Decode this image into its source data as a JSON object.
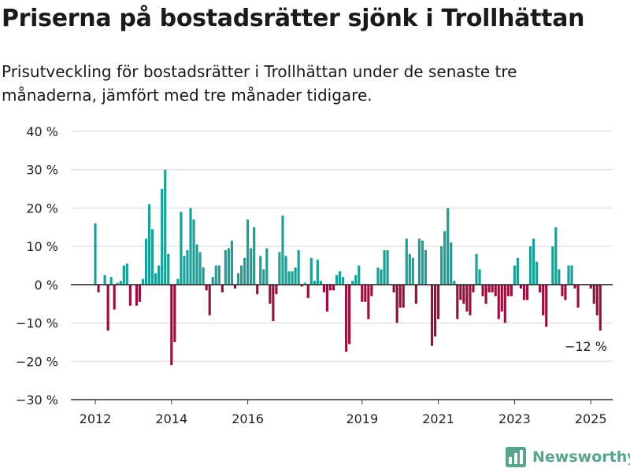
{
  "title": "Priserna på bostadsrätter sjönk i Trollhättan",
  "subtitle": "Prisutveckling för bostadsrätter i Trollhättan under de senaste tre månaderna, jämfört med tre månader tidigare.",
  "brand": {
    "name": "Newsworthy",
    "icon": "bar-chart-logo-icon"
  },
  "colors": {
    "positive": "#1a9e96",
    "negative": "#95103f",
    "grid": "#d9d9d9",
    "axis": "#333333"
  },
  "chart_data": {
    "type": "bar",
    "title": "Priserna på bostadsrätter sjönk i Trollhättan",
    "subtitle": "Prisutveckling för bostadsrätter i Trollhättan under de senaste tre månaderna, jämfört med tre månader tidigare.",
    "xlabel": "",
    "ylabel": "",
    "ylim": [
      -30,
      40
    ],
    "yticks": [
      40,
      30,
      20,
      10,
      0,
      -10,
      -20,
      -30
    ],
    "ytick_labels": [
      "40 %",
      "30 %",
      "20 %",
      "10 %",
      "0 %",
      "−10 %",
      "−20 %",
      "−30 %"
    ],
    "xticks": [
      2012,
      2014,
      2016,
      2019,
      2021,
      2023,
      2025
    ],
    "xtick_labels": [
      "2012",
      "2014",
      "2016",
      "2019",
      "2021",
      "2023",
      "2025"
    ],
    "x_start": "2012-01",
    "grid": true,
    "annotation": {
      "text": "−12 %"
    },
    "series": [
      {
        "values": [
          16,
          -2,
          0,
          2.5,
          -12,
          2,
          -6.5,
          0.5,
          1,
          5,
          5.5,
          -5.5,
          0,
          -5.5,
          -4.5,
          1.5,
          12,
          21,
          14.5,
          3,
          5,
          25,
          30,
          8,
          -21,
          -15,
          1.5,
          19,
          7.5,
          9,
          20,
          17,
          10.5,
          8.5,
          4.5,
          -1.5,
          -8,
          2,
          5,
          5,
          -2,
          9,
          9.5,
          11.5,
          -1,
          3,
          5,
          7,
          17,
          9.5,
          15,
          -2.5,
          7.5,
          4,
          9.5,
          -5,
          -9.5,
          -2.5,
          8.5,
          18,
          7.5,
          3.5,
          3.5,
          4.5,
          9,
          -0.5,
          0.5,
          -3.5,
          7,
          1,
          6.5,
          1,
          -2,
          -7,
          -1.5,
          -1.5,
          2.5,
          3.5,
          2,
          -17.5,
          -15.5,
          1,
          2.5,
          5,
          -4.5,
          -4.5,
          -9,
          -3,
          0,
          4.5,
          4,
          9,
          9,
          0,
          -2,
          -10,
          -6,
          -6,
          12,
          8,
          7,
          -5,
          12,
          11.5,
          9,
          0,
          -16,
          -13.5,
          -9,
          10,
          14,
          20,
          11,
          1,
          -9,
          -4,
          -5,
          -7,
          -8,
          -2,
          8,
          4,
          -3,
          -5,
          -2,
          -2,
          -3,
          -9,
          -7,
          -10,
          -3,
          -3,
          5,
          7,
          -1,
          -4,
          -4,
          10,
          12,
          6,
          -2,
          -8,
          -11,
          0,
          10,
          15,
          4,
          -3,
          -4,
          5,
          5,
          -1,
          -6,
          0,
          0,
          0,
          -1,
          -5,
          -8,
          -12
        ]
      }
    ]
  }
}
